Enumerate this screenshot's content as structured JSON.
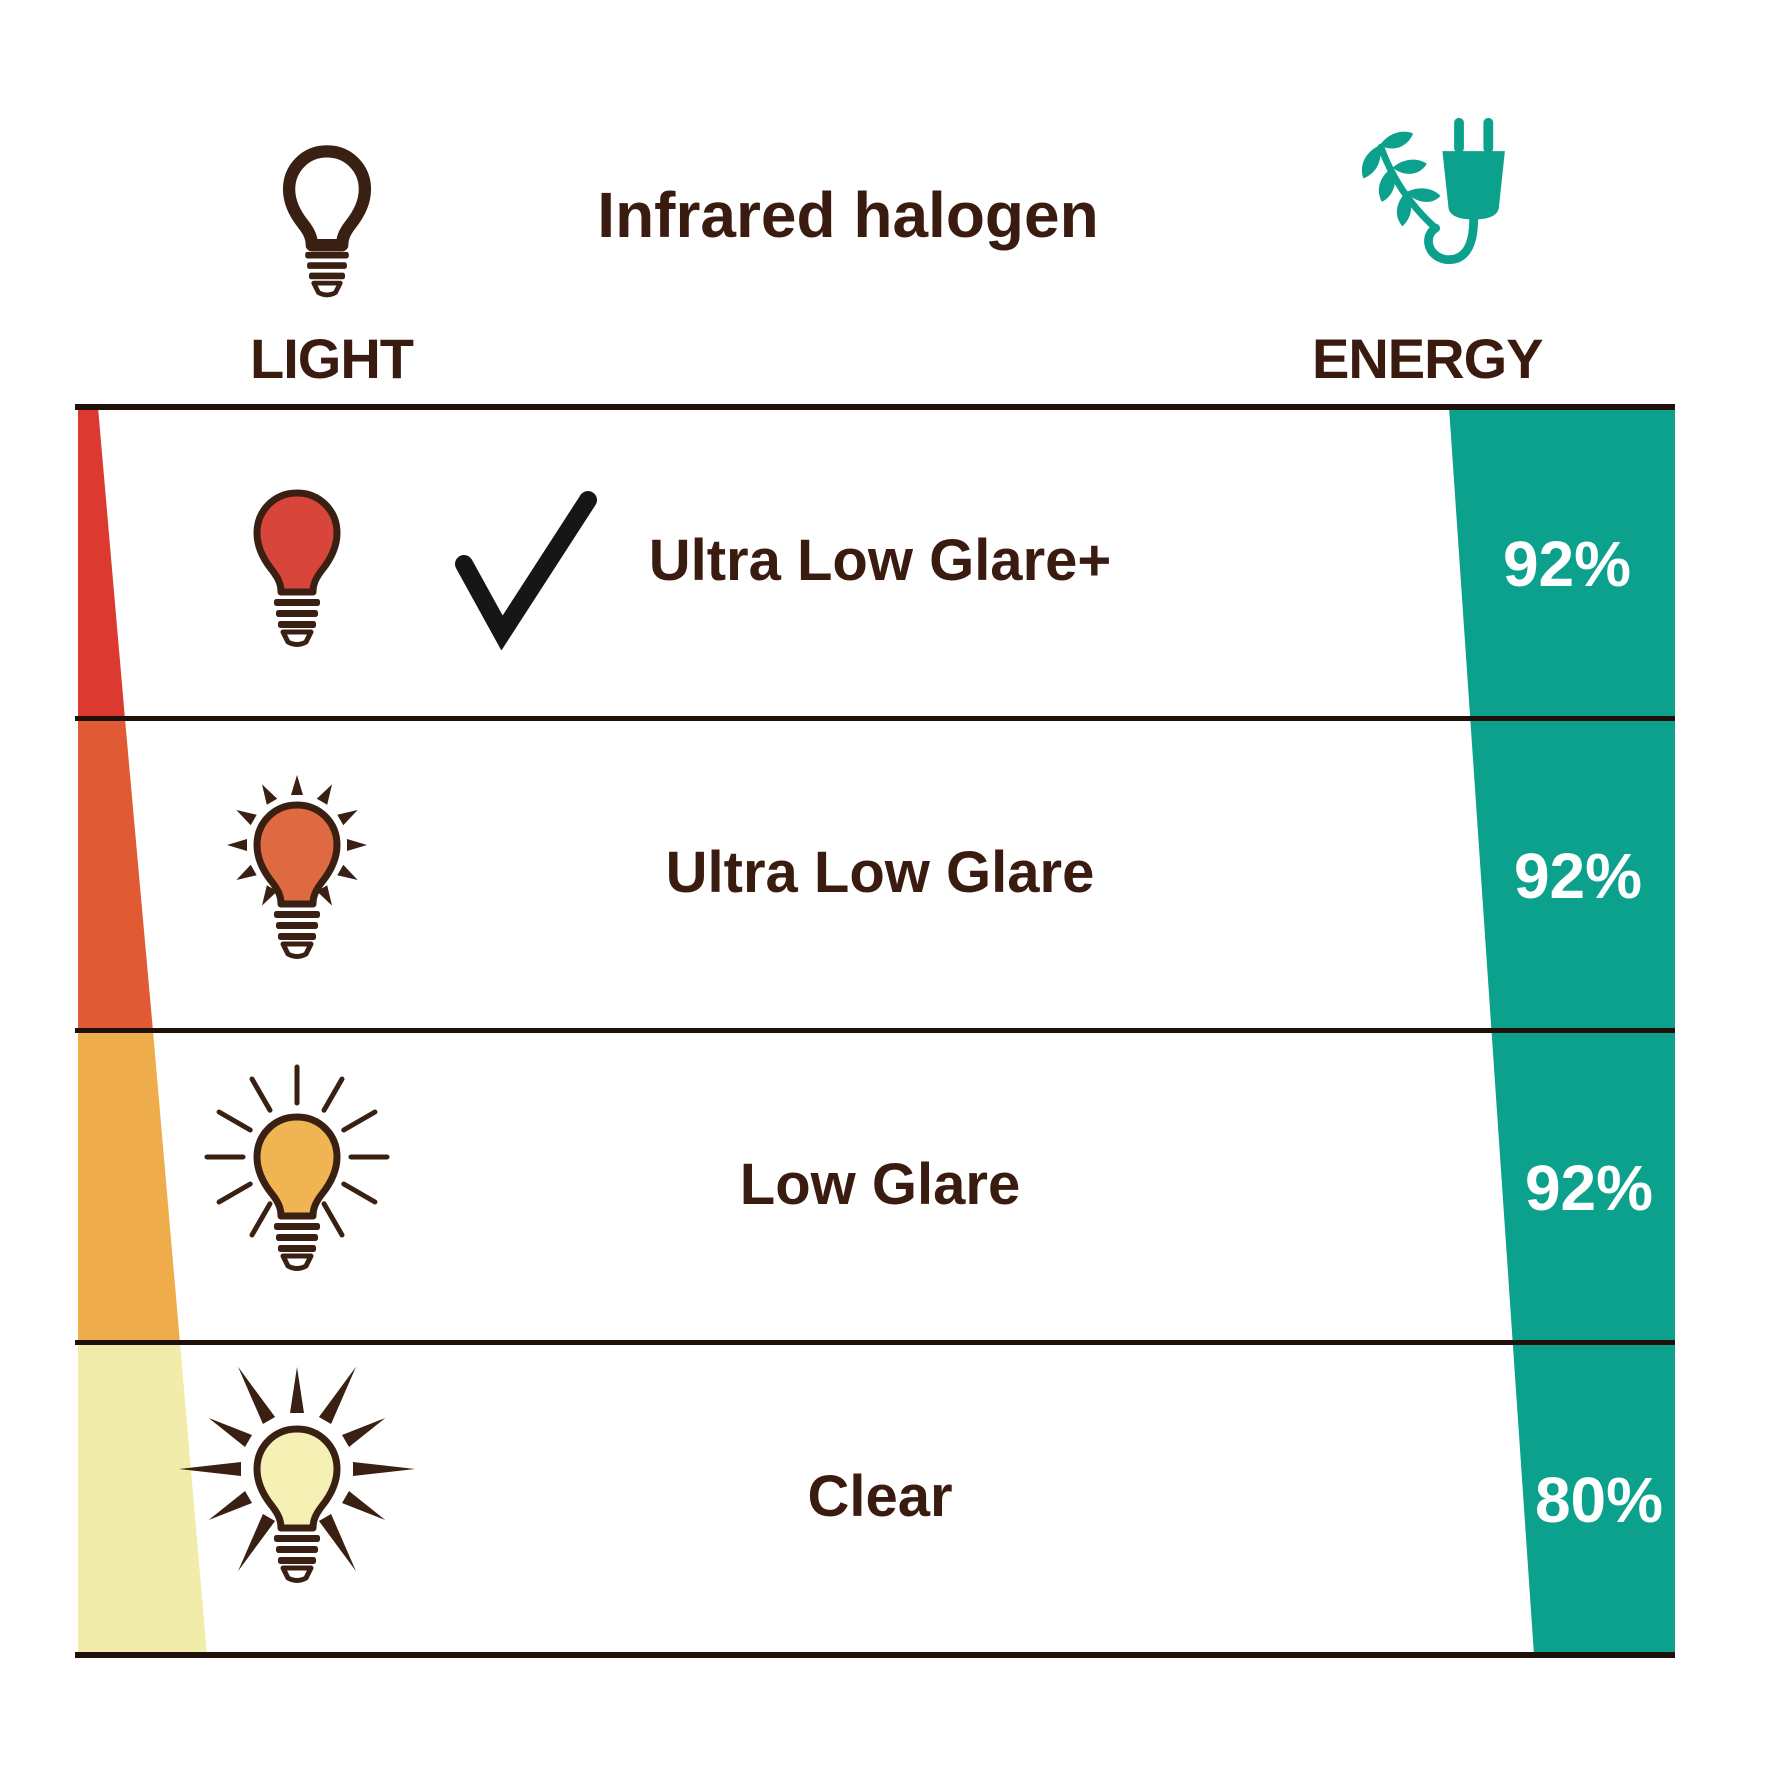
{
  "header": {
    "title": "Infrared halogen",
    "light_label": "LIGHT",
    "energy_label": "ENERGY"
  },
  "colors": {
    "text_dark": "#3a1b10",
    "outline": "#3a2012",
    "line": "#20100a",
    "teal": "#0ba18c",
    "check": "#161616",
    "percent_text": "#ffffff",
    "background": "#ffffff"
  },
  "chart_data": {
    "type": "table",
    "title": "Infrared halogen",
    "columns": [
      "LIGHT",
      "ENERGY"
    ],
    "rows": [
      {
        "label": "Ultra Low Glare+",
        "energy": "92%",
        "energy_value": 92,
        "checked": true,
        "glare_level": 1,
        "ray_style": "none",
        "bulb_fill": "#d8463b",
        "wedge_color": "#dc3a30"
      },
      {
        "label": "Ultra Low Glare",
        "energy": "92%",
        "energy_value": 92,
        "checked": false,
        "glare_level": 2,
        "ray_style": "short",
        "bulb_fill": "#df6940",
        "wedge_color": "#e05b33"
      },
      {
        "label": "Low Glare",
        "energy": "92%",
        "energy_value": 92,
        "checked": false,
        "glare_level": 3,
        "ray_style": "medium",
        "bulb_fill": "#f0b452",
        "wedge_color": "#eeac4a"
      },
      {
        "label": "Clear",
        "energy": "80%",
        "energy_value": 80,
        "checked": false,
        "glare_level": 4,
        "ray_style": "long",
        "bulb_fill": "#f5f0b4",
        "wedge_color": "#f1eca9"
      }
    ],
    "energy_band_color": "#0ba18c",
    "legend_position": "none",
    "grid": "row-dividers"
  }
}
